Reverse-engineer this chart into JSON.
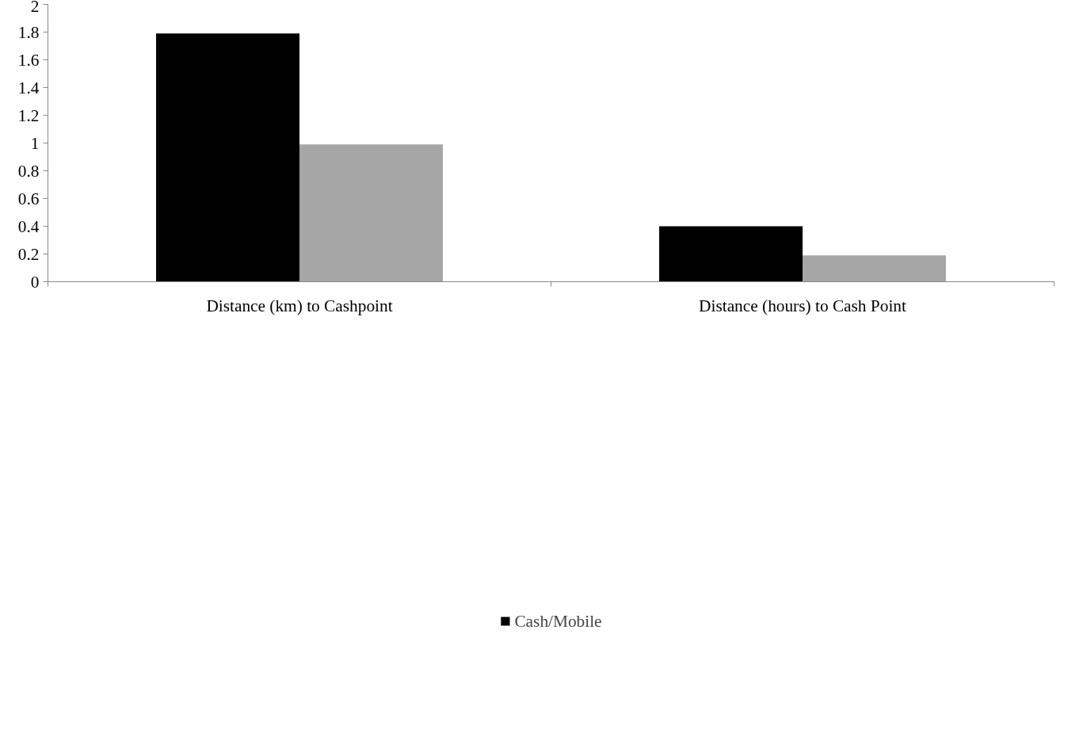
{
  "chart_data": {
    "type": "bar",
    "categories": [
      "Distance (km) to Cashpoint",
      "Distance (hours) to Cash Point"
    ],
    "series": [
      {
        "name": "Cash/Mobile",
        "color": "#000000",
        "values": [
          1.79,
          0.4
        ]
      },
      {
        "color": "#a6a6a6",
        "values": [
          0.99,
          0.19
        ]
      }
    ],
    "ylim": [
      0,
      2
    ],
    "yticks": [
      0,
      0.2,
      0.4,
      0.6,
      0.8,
      1,
      1.2,
      1.4,
      1.6,
      1.8,
      2
    ],
    "grid": false,
    "legend": "bottom"
  }
}
